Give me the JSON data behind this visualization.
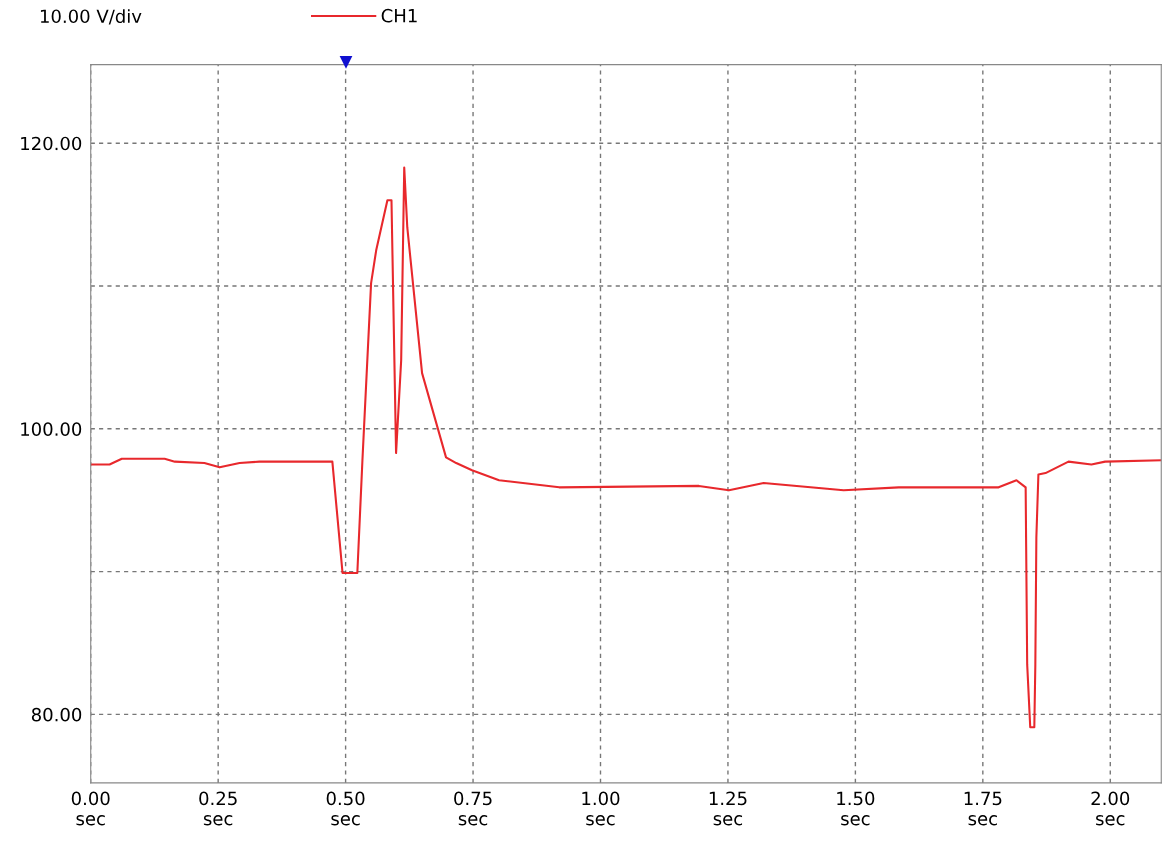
{
  "chart_data": {
    "type": "line",
    "annotations": [
      "10.00 V/div",
      "▼"
    ],
    "xlim": [
      0,
      2.1
    ],
    "ylim": [
      75.2,
      125.5
    ],
    "xticks": [
      {
        "value": 0,
        "label": "0.00\nsec"
      },
      {
        "value": 0.25,
        "label": "0.25\nsec"
      },
      {
        "value": 0.5,
        "label": "0.50\nsec"
      },
      {
        "value": 0.75,
        "label": "0.75\nsec"
      },
      {
        "value": 1.0,
        "label": "1.00\nsec"
      },
      {
        "value": 1.25,
        "label": "1.25\nsec"
      },
      {
        "value": 1.5,
        "label": "1.50\nsec"
      },
      {
        "value": 1.75,
        "label": "1.75\nsec"
      },
      {
        "value": 2.0,
        "label": "2.00\nsec"
      }
    ],
    "yticks": [
      {
        "value": 80,
        "label": "80.00"
      },
      {
        "value": 90,
        "label": null
      },
      {
        "value": 100,
        "label": "100.00"
      },
      {
        "value": 110,
        "label": null
      },
      {
        "value": 120,
        "label": "120.00"
      }
    ],
    "grid": true,
    "legend": "top",
    "line_style": "solid",
    "marker": "none",
    "series": [
      {
        "name": "CH1",
        "color": "#e8282c",
        "x": [
          0,
          0.037,
          0.061,
          0.145,
          0.165,
          0.223,
          0.253,
          0.292,
          0.331,
          0.474,
          0.494,
          0.523,
          0.533,
          0.55,
          0.56,
          0.582,
          0.59,
          0.599,
          0.609,
          0.615,
          0.621,
          0.65,
          0.697,
          0.717,
          0.748,
          0.801,
          0.919,
          1.193,
          1.252,
          1.32,
          1.477,
          1.585,
          1.781,
          1.816,
          1.834,
          1.835,
          1.837,
          1.843,
          1.851,
          1.853,
          1.855,
          1.859,
          1.873,
          1.918,
          1.963,
          1.99,
          2.1
        ],
        "values": [
          97.5,
          97.5,
          97.9,
          97.9,
          97.7,
          97.6,
          97.3,
          97.6,
          97.7,
          97.7,
          89.9,
          89.9,
          97.8,
          110.2,
          112.5,
          116.0,
          116.0,
          98.3,
          104.8,
          118.3,
          114.1,
          103.9,
          98.0,
          97.6,
          97.1,
          96.4,
          95.9,
          96.0,
          95.7,
          96.2,
          95.7,
          95.9,
          95.9,
          96.4,
          95.9,
          91.7,
          83.5,
          79.1,
          79.1,
          83.5,
          92.4,
          96.8,
          96.9,
          97.7,
          97.5,
          97.7,
          97.8
        ]
      }
    ]
  }
}
